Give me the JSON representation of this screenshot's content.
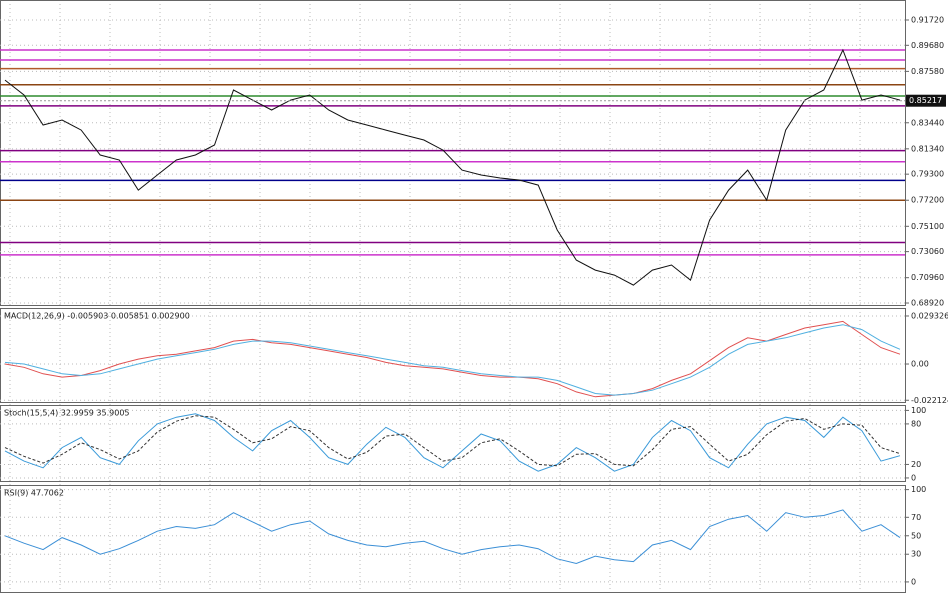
{
  "chart_data": [
    {
      "type": "line",
      "panel": "price",
      "grid": true,
      "ylim": [
        0.6868,
        0.9333
      ],
      "yticks": [
        {
          "value": 0.9172,
          "label": "0.91720"
        },
        {
          "value": 0.8968,
          "label": "0.89680"
        },
        {
          "value": 0.8758,
          "label": "0.87580"
        },
        {
          "value": 0.8344,
          "label": "0.83440"
        },
        {
          "value": 0.8134,
          "label": "0.81340"
        },
        {
          "value": 0.793,
          "label": "0.79300"
        },
        {
          "value": 0.772,
          "label": "0.77200"
        },
        {
          "value": 0.751,
          "label": "0.75100"
        },
        {
          "value": 0.7306,
          "label": "0.73060"
        },
        {
          "value": 0.7096,
          "label": "0.70960"
        },
        {
          "value": 0.6892,
          "label": "0.68920"
        }
      ],
      "last_price": 0.85217,
      "levels": [
        {
          "value": 0.893,
          "color": "#cc33cc"
        },
        {
          "value": 0.885,
          "color": "#cc33cc"
        },
        {
          "value": 0.878,
          "color": "#b05a2a"
        },
        {
          "value": 0.865,
          "color": "#8b4513"
        },
        {
          "value": 0.856,
          "color": "#2e8b2e"
        },
        {
          "value": 0.848,
          "color": "#800080"
        },
        {
          "value": 0.812,
          "color": "#800080"
        },
        {
          "value": 0.803,
          "color": "#cc33cc"
        },
        {
          "value": 0.788,
          "color": "#00008b"
        },
        {
          "value": 0.772,
          "color": "#8b4513"
        },
        {
          "value": 0.738,
          "color": "#800080"
        },
        {
          "value": 0.728,
          "color": "#cc33cc"
        }
      ],
      "series": [
        {
          "color": "#111111",
          "values": [
            0.8688,
            0.8568,
            0.8326,
            0.8366,
            0.8285,
            0.8084,
            0.8044,
            0.7802,
            0.7923,
            0.8044,
            0.8084,
            0.8165,
            0.8608,
            0.8527,
            0.8447,
            0.8527,
            0.8568,
            0.8447,
            0.8366,
            0.8326,
            0.8285,
            0.8245,
            0.8205,
            0.8124,
            0.7963,
            0.7923,
            0.7899,
            0.7883,
            0.7842,
            0.748,
            0.7238,
            0.7157,
            0.7117,
            0.7036,
            0.7157,
            0.7198,
            0.7077,
            0.756,
            0.7802,
            0.7963,
            0.7721,
            0.8285,
            0.8527,
            0.8608,
            0.893,
            0.8527,
            0.8568,
            0.8527
          ]
        }
      ]
    },
    {
      "type": "line",
      "panel": "macd",
      "title": "MACD(12,26,9) -0.005903 0.005851 0.002900",
      "grid": true,
      "ylim": [
        -0.0238,
        0.0342
      ],
      "yticks": [
        0.029326,
        {
          "value": 0,
          "label": "0.00"
        },
        -0.022124
      ],
      "series": [
        {
          "color": "#e05050",
          "values": [
            0.0,
            -0.002,
            -0.006,
            -0.008,
            -0.007,
            -0.004,
            0.0,
            0.003,
            0.005,
            0.006,
            0.008,
            0.01,
            0.014,
            0.015,
            0.013,
            0.012,
            0.01,
            0.008,
            0.006,
            0.004,
            0.001,
            -0.001,
            -0.002,
            -0.003,
            -0.005,
            -0.007,
            -0.008,
            -0.008,
            -0.009,
            -0.012,
            -0.017,
            -0.02,
            -0.019,
            -0.018,
            -0.015,
            -0.01,
            -0.006,
            0.002,
            0.01,
            0.016,
            0.014,
            0.018,
            0.022,
            0.024,
            0.026,
            0.018,
            0.01,
            0.006
          ]
        },
        {
          "color": "#50b0e0",
          "values": [
            0.001,
            0.0,
            -0.003,
            -0.006,
            -0.007,
            -0.006,
            -0.003,
            0.0,
            0.003,
            0.005,
            0.007,
            0.009,
            0.012,
            0.014,
            0.014,
            0.013,
            0.011,
            0.009,
            0.007,
            0.005,
            0.003,
            0.001,
            -0.001,
            -0.002,
            -0.004,
            -0.006,
            -0.007,
            -0.008,
            -0.008,
            -0.01,
            -0.014,
            -0.018,
            -0.019,
            -0.018,
            -0.016,
            -0.012,
            -0.008,
            -0.002,
            0.006,
            0.012,
            0.014,
            0.016,
            0.019,
            0.022,
            0.024,
            0.021,
            0.014,
            0.009
          ]
        }
      ]
    },
    {
      "type": "line",
      "panel": "stoch",
      "title": "Stoch(15,5,4) 32.9959 35.9005",
      "grid": true,
      "ylim": [
        -6,
        108
      ],
      "yticks": [
        100,
        80,
        20,
        0
      ],
      "series": [
        {
          "color": "#3a9ad9",
          "values": [
            40,
            25,
            15,
            45,
            60,
            30,
            20,
            55,
            80,
            90,
            95,
            85,
            60,
            40,
            70,
            85,
            60,
            30,
            20,
            50,
            75,
            60,
            30,
            15,
            40,
            65,
            55,
            25,
            10,
            20,
            45,
            30,
            10,
            20,
            60,
            85,
            70,
            30,
            15,
            50,
            80,
            90,
            85,
            60,
            90,
            70,
            25,
            33
          ]
        },
        {
          "color": "#333333",
          "dash": true,
          "values": [
            45,
            32,
            22,
            35,
            52,
            42,
            28,
            40,
            68,
            84,
            92,
            90,
            72,
            52,
            58,
            76,
            70,
            45,
            28,
            38,
            62,
            65,
            45,
            25,
            30,
            52,
            58,
            40,
            20,
            18,
            35,
            36,
            20,
            18,
            42,
            72,
            76,
            50,
            25,
            35,
            64,
            84,
            88,
            72,
            80,
            78,
            45,
            36
          ]
        }
      ]
    },
    {
      "type": "line",
      "panel": "rsi",
      "title": "RSI(9) 47.7062",
      "grid": true,
      "ylim": [
        -12,
        105
      ],
      "yticks": [
        100,
        70,
        50,
        30,
        0
      ],
      "series": [
        {
          "color": "#3b8fd6",
          "values": [
            50,
            42,
            35,
            48,
            40,
            30,
            36,
            45,
            55,
            60,
            58,
            62,
            75,
            65,
            55,
            62,
            66,
            52,
            45,
            40,
            38,
            42,
            44,
            36,
            30,
            35,
            38,
            40,
            36,
            25,
            20,
            28,
            24,
            22,
            40,
            45,
            35,
            60,
            68,
            72,
            55,
            75,
            70,
            72,
            78,
            55,
            62,
            48
          ]
        }
      ]
    }
  ]
}
